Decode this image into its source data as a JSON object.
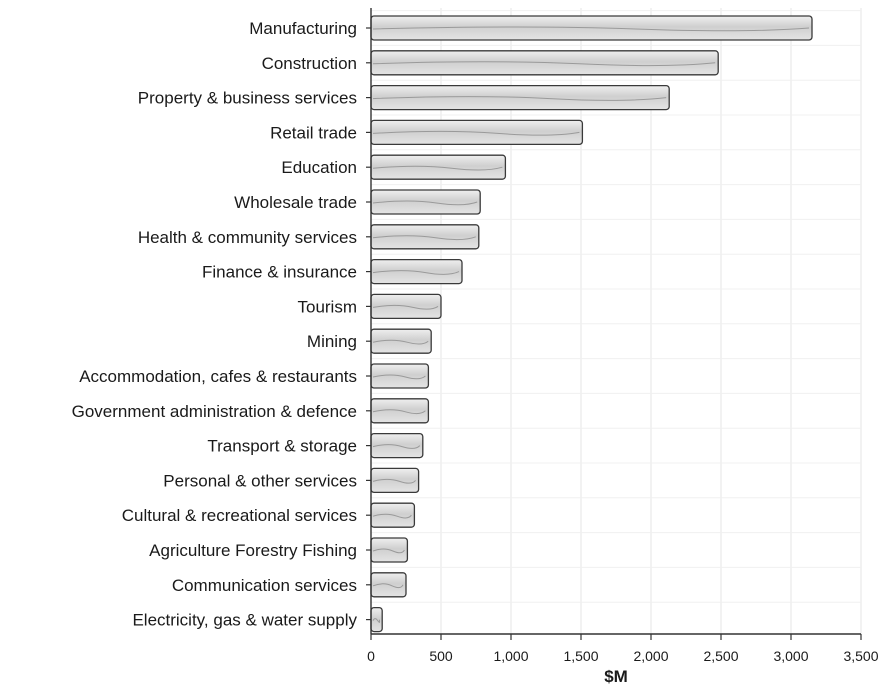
{
  "chart_data": {
    "type": "bar",
    "orientation": "horizontal",
    "categories": [
      "Manufacturing",
      "Construction",
      "Property & business services",
      "Retail trade",
      "Education",
      "Wholesale trade",
      "Health & community services",
      "Finance & insurance",
      "Tourism",
      "Mining",
      "Accommodation, cafes & restaurants",
      "Government administration & defence",
      "Transport & storage",
      "Personal & other services",
      "Cultural & recreational services",
      "Agriculture Forestry Fishing",
      "Communication services",
      "Electricity, gas & water supply"
    ],
    "values": [
      3150,
      2480,
      2130,
      1510,
      960,
      780,
      770,
      650,
      500,
      430,
      410,
      410,
      370,
      340,
      310,
      260,
      250,
      80
    ],
    "xlabel": "$M",
    "ylabel": "",
    "title": "",
    "xlim": [
      0,
      3500
    ],
    "xticks": [
      0,
      500,
      1000,
      1500,
      2000,
      2500,
      3000,
      3500
    ],
    "xtick_labels": [
      "0",
      "500",
      "1,000",
      "1,500",
      "2,000",
      "2,500",
      "3,000",
      "3,500"
    ],
    "grid": true,
    "legend": "none",
    "colors": {
      "bar_fill": "#d6d6d6",
      "bar_stroke": "#3a3a3a",
      "grid": "#e6e6e6",
      "axis": "#333333"
    }
  }
}
